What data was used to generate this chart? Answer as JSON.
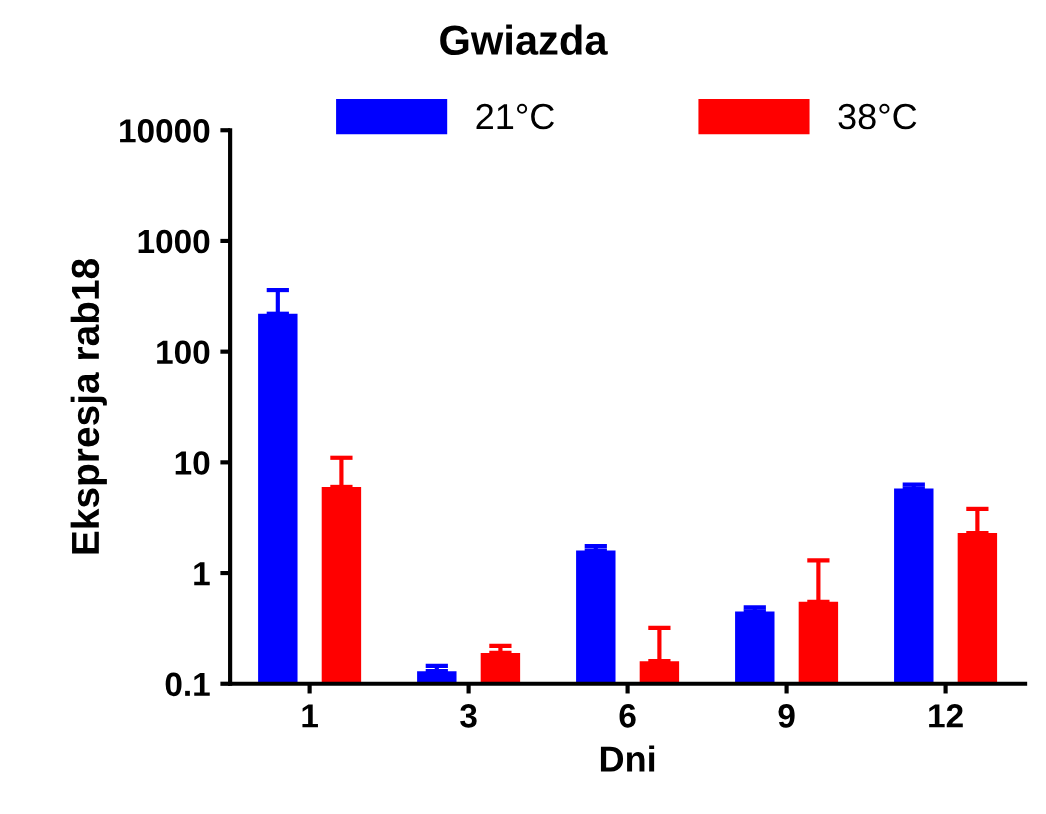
{
  "chart_data": {
    "type": "bar",
    "title": "Gwiazda",
    "xlabel": "Dni",
    "ylabel": "Ekspresja rab18",
    "categories": [
      "1",
      "3",
      "6",
      "9",
      "12"
    ],
    "series": [
      {
        "name": "21°C",
        "color": "#0000ff",
        "values": [
          220,
          0.13,
          1.6,
          0.45,
          5.8
        ],
        "errors": [
          [
            220,
            360
          ],
          [
            0.13,
            0.145
          ],
          [
            1.6,
            1.75
          ],
          [
            0.45,
            0.49
          ],
          [
            5.8,
            6.3
          ]
        ]
      },
      {
        "name": "38°C",
        "color": "#ff0000",
        "values": [
          6,
          0.19,
          0.16,
          0.55,
          2.3
        ],
        "errors": [
          [
            6,
            11
          ],
          [
            0.19,
            0.22
          ],
          [
            0.16,
            0.32
          ],
          [
            0.55,
            1.3
          ],
          [
            2.3,
            3.8
          ]
        ]
      }
    ],
    "log": "y",
    "ylim": [
      0.1,
      10000
    ],
    "yticks": [
      0.1,
      1,
      10,
      100,
      1000,
      10000
    ],
    "legend": "top",
    "grid": false
  }
}
